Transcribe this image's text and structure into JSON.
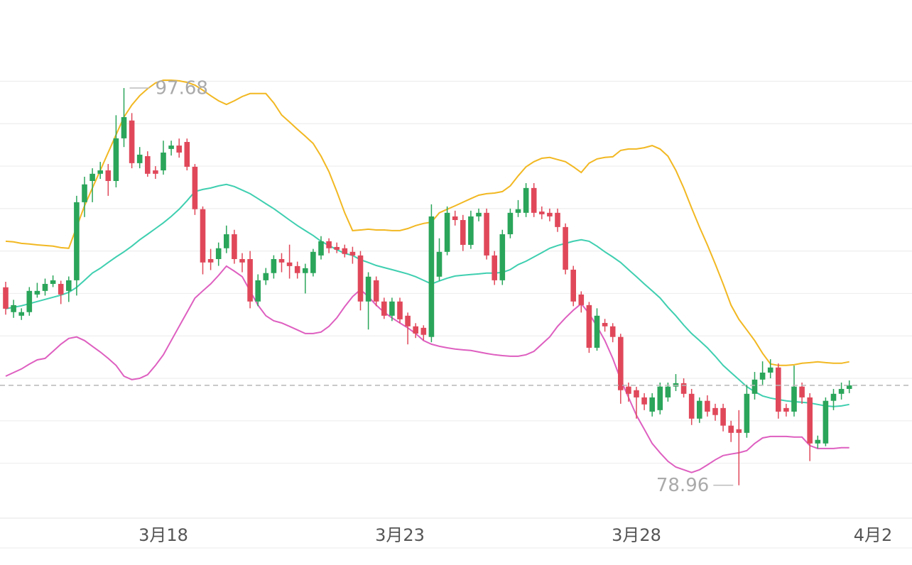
{
  "chart_data": {
    "type": "candlestick",
    "categories": [
      null,
      null,
      null,
      null,
      null,
      null,
      null,
      null,
      null,
      null,
      null,
      null,
      null,
      null,
      null,
      null,
      null,
      null,
      null,
      null,
      "3月18",
      null,
      null,
      null,
      null,
      null,
      null,
      null,
      null,
      null,
      null,
      null,
      null,
      null,
      null,
      null,
      null,
      null,
      null,
      null,
      null,
      null,
      null,
      null,
      null,
      null,
      null,
      null,
      null,
      null,
      "3月23",
      null,
      null,
      null,
      null,
      null,
      null,
      null,
      null,
      null,
      null,
      null,
      null,
      null,
      null,
      null,
      null,
      null,
      null,
      null,
      null,
      null,
      null,
      null,
      null,
      null,
      null,
      null,
      null,
      null,
      "3月28",
      null,
      null,
      null,
      null,
      null,
      null,
      null,
      null,
      null,
      null,
      null,
      null,
      null,
      null,
      null,
      null,
      null,
      null,
      null,
      null,
      null,
      null,
      null,
      null,
      null,
      null,
      null,
      null,
      null,
      "4月2"
    ],
    "open": [
      88.29,
      87.12,
      86.95,
      87.12,
      87.95,
      88.12,
      88.45,
      88.45,
      88.12,
      88.62,
      92.3,
      93.3,
      93.64,
      93.8,
      93.3,
      95.31,
      96.15,
      94.14,
      94.47,
      93.8,
      93.8,
      94.81,
      94.97,
      95.14,
      93.97,
      91.97,
      89.62,
      89.62,
      90.13,
      90.79,
      89.62,
      89.62,
      87.62,
      88.62,
      88.96,
      89.62,
      89.46,
      89.29,
      88.96,
      88.96,
      89.79,
      90.46,
      90.19,
      90.13,
      89.96,
      89.79,
      87.62,
      88.62,
      87.62,
      86.95,
      87.62,
      86.95,
      86.45,
      86.38,
      85.95,
      88.79,
      89.96,
      91.63,
      91.46,
      90.29,
      91.63,
      91.8,
      89.79,
      88.62,
      90.79,
      91.8,
      91.8,
      92.97,
      91.86,
      91.8,
      91.8,
      91.13,
      89.12,
      87.95,
      87.45,
      85.44,
      86.61,
      86.45,
      85.95,
      83.61,
      83.44,
      83.1,
      82.43,
      82.5,
      83.1,
      83.61,
      83.77,
      83.27,
      82.1,
      82.94,
      82.6,
      82.6,
      81.77,
      81.6,
      81.43,
      83.27,
      83.94,
      84.27,
      84.51,
      82.6,
      82.43,
      83.61,
      83.1,
      80.93,
      80.93,
      82.94,
      83.27,
      83.5,
      null,
      null,
      null
    ],
    "high": [
      88.55,
      87.7,
      87.3,
      88.3,
      88.5,
      88.7,
      88.85,
      88.6,
      88.8,
      92.6,
      93.5,
      93.9,
      94.2,
      94.1,
      96.4,
      97.68,
      96.5,
      94.9,
      94.7,
      94.0,
      95.2,
      95.2,
      95.3,
      95.3,
      94.1,
      92.1,
      90.1,
      90.4,
      91.2,
      91.0,
      89.9,
      90.0,
      88.9,
      89.2,
      89.8,
      89.9,
      90.3,
      89.5,
      89.4,
      90.1,
      90.7,
      90.6,
      90.4,
      90.3,
      90.2,
      90.0,
      89.0,
      88.8,
      87.8,
      87.8,
      87.8,
      87.1,
      86.6,
      86.5,
      92.2,
      90.6,
      92.1,
      91.9,
      91.7,
      91.9,
      92.0,
      92.0,
      90.0,
      91.0,
      92.0,
      92.4,
      93.2,
      93.2,
      92.1,
      92.0,
      92.0,
      91.3,
      89.3,
      88.1,
      87.6,
      87.3,
      86.8,
      86.6,
      86.1,
      83.8,
      83.6,
      83.3,
      83.3,
      83.8,
      83.8,
      84.2,
      84.0,
      83.5,
      83.1,
      83.2,
      82.8,
      82.8,
      82.0,
      82.5,
      83.7,
      84.3,
      84.8,
      84.9,
      84.7,
      82.8,
      84.6,
      83.8,
      83.3,
      81.3,
      83.1,
      83.5,
      83.8,
      83.9,
      null,
      null,
      null
    ],
    "low": [
      87.0,
      86.85,
      86.75,
      86.95,
      87.8,
      87.9,
      88.3,
      87.5,
      87.6,
      87.9,
      91.6,
      92.3,
      93.4,
      92.6,
      93.0,
      94.9,
      93.9,
      93.9,
      93.5,
      93.4,
      93.6,
      94.5,
      94.4,
      93.8,
      91.7,
      88.9,
      89.1,
      89.3,
      89.9,
      89.4,
      89.0,
      87.3,
      87.4,
      88.4,
      88.7,
      89.0,
      88.7,
      88.7,
      88.0,
      88.8,
      89.6,
      89.9,
      89.9,
      89.7,
      89.4,
      87.2,
      86.3,
      87.4,
      86.8,
      86.7,
      86.6,
      85.6,
      85.9,
      85.8,
      85.7,
      88.6,
      89.8,
      91.2,
      90.0,
      90.1,
      91.4,
      89.6,
      88.4,
      88.4,
      90.6,
      91.6,
      91.6,
      91.6,
      91.5,
      91.4,
      90.9,
      88.9,
      87.4,
      87.1,
      85.2,
      85.3,
      86.2,
      85.7,
      82.8,
      82.9,
      82.1,
      82.5,
      82.2,
      82.3,
      82.9,
      83.4,
      83.1,
      81.8,
      81.9,
      82.2,
      82.0,
      81.5,
      81.0,
      78.96,
      81.2,
      83.0,
      83.7,
      84.0,
      82.1,
      82.2,
      82.2,
      82.8,
      80.1,
      80.7,
      80.8,
      82.5,
      83.0,
      83.3,
      null,
      null,
      null
    ],
    "close": [
      87.28,
      87.45,
      87.12,
      88.12,
      88.12,
      88.45,
      88.62,
      87.95,
      88.62,
      92.3,
      93.14,
      93.64,
      93.8,
      93.3,
      95.31,
      96.31,
      94.14,
      94.54,
      93.64,
      93.64,
      94.64,
      94.97,
      94.64,
      93.97,
      91.97,
      89.46,
      89.46,
      90.13,
      90.79,
      89.62,
      89.46,
      87.62,
      88.62,
      88.96,
      89.62,
      89.46,
      89.29,
      88.96,
      89.19,
      89.96,
      90.46,
      90.13,
      90.06,
      89.86,
      89.79,
      87.62,
      88.79,
      87.62,
      86.95,
      87.62,
      86.78,
      86.45,
      86.11,
      86.05,
      91.63,
      89.96,
      91.8,
      91.46,
      90.29,
      91.63,
      91.8,
      89.79,
      88.62,
      90.79,
      91.8,
      91.97,
      92.97,
      91.8,
      91.73,
      91.63,
      91.13,
      89.12,
      87.62,
      87.45,
      85.44,
      86.95,
      86.45,
      85.95,
      83.44,
      83.27,
      83.1,
      82.77,
      83.1,
      83.61,
      83.61,
      83.77,
      83.27,
      82.1,
      82.94,
      82.43,
      82.27,
      81.77,
      81.43,
      81.43,
      83.27,
      83.94,
      84.27,
      84.51,
      82.43,
      82.43,
      83.61,
      83.1,
      80.93,
      81.1,
      82.94,
      83.27,
      83.5,
      83.67,
      null,
      null,
      null
    ],
    "up_color": "#2aa55a",
    "down_color": "#e0485a",
    "series": [
      {
        "color": "#f2b822",
        "values": [
          90.46,
          90.43,
          90.36,
          90.33,
          90.29,
          90.26,
          90.23,
          90.16,
          90.13,
          91.13,
          92.13,
          92.97,
          93.8,
          94.64,
          95.48,
          96.31,
          96.88,
          97.32,
          97.65,
          97.92,
          98.05,
          98.05,
          98.02,
          97.95,
          97.82,
          97.58,
          97.32,
          97.08,
          96.91,
          97.08,
          97.28,
          97.42,
          97.42,
          97.42,
          96.98,
          96.41,
          96.08,
          95.74,
          95.41,
          95.07,
          94.47,
          93.74,
          92.8,
          91.8,
          90.96,
          90.99,
          91.03,
          90.99,
          90.99,
          90.96,
          90.96,
          91.06,
          91.2,
          91.3,
          91.36,
          91.8,
          91.97,
          92.13,
          92.3,
          92.47,
          92.63,
          92.7,
          92.73,
          92.8,
          93.07,
          93.54,
          93.97,
          94.21,
          94.37,
          94.41,
          94.31,
          94.21,
          93.97,
          93.7,
          94.14,
          94.34,
          94.41,
          94.44,
          94.74,
          94.81,
          94.81,
          94.87,
          94.97,
          94.81,
          94.47,
          93.8,
          92.97,
          92.03,
          91.13,
          90.29,
          89.39,
          88.45,
          87.45,
          86.78,
          86.28,
          85.78,
          85.18,
          84.68,
          84.61,
          84.61,
          84.64,
          84.71,
          84.74,
          84.78,
          84.74,
          84.71,
          84.71,
          84.78,
          null,
          null,
          null
        ]
      },
      {
        "color": "#3fcfb0",
        "values": [
          87.28,
          87.35,
          87.42,
          87.52,
          87.62,
          87.72,
          87.82,
          87.92,
          88.05,
          88.29,
          88.62,
          88.96,
          89.19,
          89.46,
          89.72,
          89.96,
          90.23,
          90.53,
          90.79,
          91.06,
          91.33,
          91.63,
          91.97,
          92.37,
          92.8,
          92.9,
          92.97,
          93.07,
          93.14,
          93.04,
          92.87,
          92.7,
          92.47,
          92.23,
          92.0,
          91.73,
          91.46,
          91.2,
          90.96,
          90.73,
          90.46,
          90.26,
          90.06,
          89.89,
          89.79,
          89.59,
          89.46,
          89.32,
          89.22,
          89.12,
          89.02,
          88.92,
          88.79,
          88.62,
          88.45,
          88.59,
          88.72,
          88.82,
          88.86,
          88.89,
          88.92,
          88.96,
          88.96,
          88.99,
          89.12,
          89.36,
          89.52,
          89.72,
          89.92,
          90.13,
          90.26,
          90.36,
          90.46,
          90.53,
          90.46,
          90.23,
          89.96,
          89.72,
          89.46,
          89.12,
          88.79,
          88.45,
          88.12,
          87.79,
          87.35,
          86.95,
          86.51,
          86.11,
          85.78,
          85.44,
          85.04,
          84.61,
          84.27,
          83.94,
          83.61,
          83.37,
          83.17,
          83.07,
          83.0,
          82.94,
          82.9,
          82.87,
          82.84,
          82.77,
          82.7,
          82.67,
          82.7,
          82.77,
          null,
          null,
          null
        ]
      },
      {
        "color": "#de5fc0",
        "values": [
          84.1,
          84.27,
          84.44,
          84.67,
          84.87,
          84.94,
          85.27,
          85.61,
          85.88,
          85.95,
          85.78,
          85.51,
          85.24,
          84.94,
          84.61,
          84.1,
          83.94,
          84.0,
          84.17,
          84.61,
          85.11,
          85.78,
          86.45,
          87.11,
          87.78,
          88.12,
          88.45,
          88.85,
          89.29,
          89.05,
          88.79,
          88.12,
          87.45,
          86.95,
          86.71,
          86.61,
          86.45,
          86.28,
          86.11,
          86.11,
          86.18,
          86.45,
          86.85,
          87.38,
          87.85,
          88.18,
          87.85,
          87.45,
          87.11,
          86.85,
          86.61,
          86.38,
          86.11,
          85.78,
          85.61,
          85.51,
          85.44,
          85.38,
          85.34,
          85.31,
          85.24,
          85.17,
          85.11,
          85.07,
          85.04,
          85.04,
          85.11,
          85.27,
          85.61,
          85.95,
          86.45,
          86.85,
          87.21,
          87.52,
          87.05,
          86.45,
          85.78,
          84.94,
          83.94,
          83.1,
          82.26,
          81.6,
          80.93,
          80.49,
          80.09,
          79.82,
          79.69,
          79.56,
          79.69,
          79.92,
          80.16,
          80.36,
          80.43,
          80.49,
          80.59,
          80.93,
          81.19,
          81.26,
          81.26,
          81.26,
          81.23,
          81.23,
          80.83,
          80.69,
          80.69,
          80.69,
          80.73,
          80.73,
          null,
          null,
          null
        ]
      }
    ],
    "ylim": [
      77.41,
      101.83
    ],
    "yticks": [
      80,
      82,
      84,
      86,
      88,
      90,
      92,
      94,
      96,
      98
    ],
    "grid": true
  }
}
